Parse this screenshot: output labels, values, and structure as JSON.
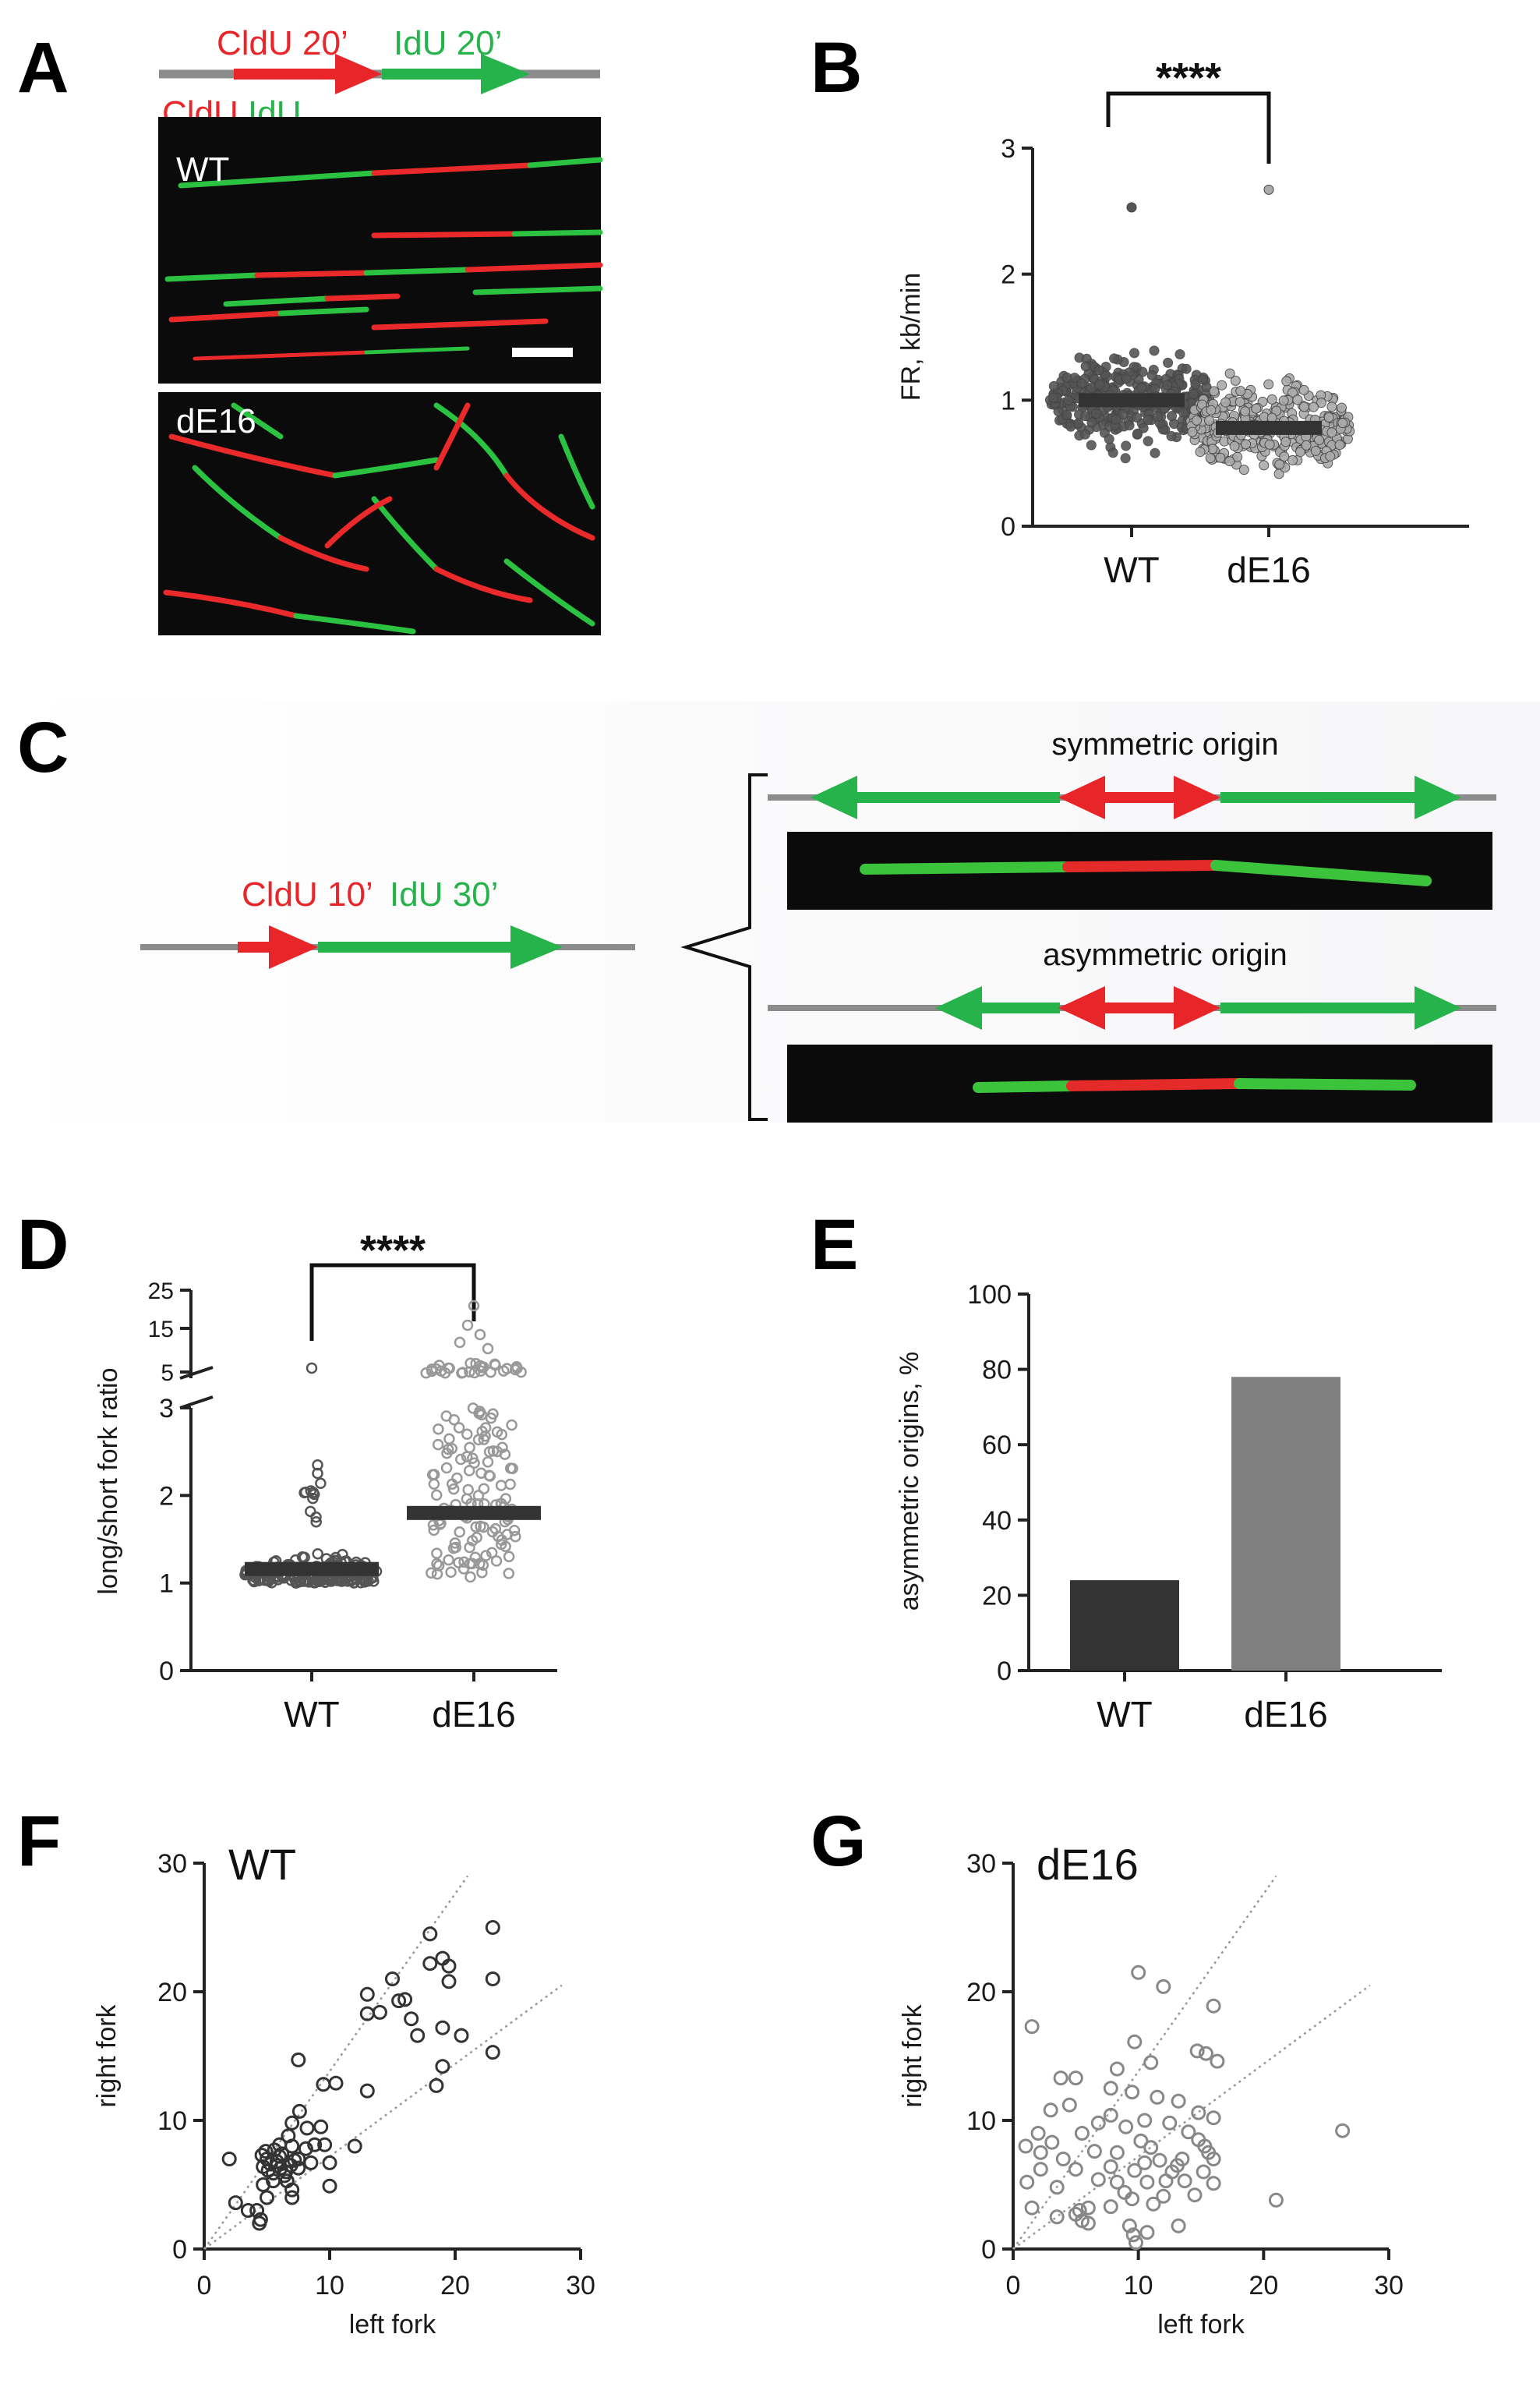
{
  "panels": {
    "A": {
      "label": "A",
      "scheme": {
        "first": "CldU 20’",
        "second": "IdU 20’"
      },
      "strip_label": "CldU IdU",
      "images": [
        "WT",
        "dE16"
      ]
    },
    "B": {
      "label": "B",
      "significance": "****"
    },
    "C": {
      "label": "C",
      "scheme": {
        "first": "CldU 10’",
        "second": "IdU 30’"
      },
      "symmetric_title": "symmetric origin",
      "asymmetric_title": "asymmetric origin"
    },
    "D": {
      "label": "D",
      "significance": "****"
    },
    "E": {
      "label": "E"
    },
    "F": {
      "label": "F",
      "inset": "WT"
    },
    "G": {
      "label": "G",
      "inset": "dE16"
    }
  },
  "colors": {
    "cldu": "#e8262a",
    "idu": "#27b34b",
    "dna": "#8c8c8c",
    "wt_bar": "#333333",
    "de16_bar": "#808080"
  },
  "chart_data": [
    {
      "id": "B",
      "type": "scatter",
      "ylabel": "FR, kb/min",
      "categories": [
        "WT",
        "dE16"
      ],
      "ylim": [
        0,
        3
      ],
      "yticks": [
        0,
        1,
        2,
        3
      ],
      "medians": [
        1.0,
        0.78
      ],
      "series": [
        {
          "color": "#555555",
          "max": 2.53,
          "min": 0.25
        },
        {
          "color": "#aaaaaa",
          "max": 2.67,
          "min": 0.17
        }
      ]
    },
    {
      "id": "D",
      "type": "scatter",
      "ylabel": "long/short fork ratio",
      "categories": [
        "WT",
        "dE16"
      ],
      "ylim": [
        0,
        3
      ],
      "yticks": [
        0,
        1,
        2,
        3
      ],
      "upper_ticks": [
        5,
        15,
        25
      ],
      "medians": [
        1.16,
        1.8
      ],
      "series": [
        {
          "color": "#555555",
          "outliers": [
            4.2
          ]
        },
        {
          "color": "#999999",
          "outliers": [
            20.5,
            12.0,
            9.5,
            6.0,
            5.0
          ]
        }
      ]
    },
    {
      "id": "E",
      "type": "bar",
      "ylabel": "asymmetric origins, %",
      "categories": [
        "WT",
        "dE16"
      ],
      "values": [
        24,
        78
      ],
      "ylim": [
        0,
        100
      ],
      "yticks": [
        0,
        20,
        40,
        60,
        80,
        100
      ]
    },
    {
      "id": "F",
      "type": "scatter",
      "xlabel": "left fork",
      "ylabel": "right fork",
      "xlim": [
        0,
        30
      ],
      "ylim": [
        0,
        30
      ],
      "xticks": [
        0,
        10,
        20,
        30
      ],
      "yticks": [
        0,
        10,
        20,
        30
      ],
      "color": "#333333",
      "points": [
        [
          14,
          18.4
        ],
        [
          18,
          24.5
        ],
        [
          19.5,
          22
        ],
        [
          23,
          25
        ],
        [
          23,
          21
        ],
        [
          23,
          15.3
        ],
        [
          18,
          22.2
        ],
        [
          19,
          22.6
        ],
        [
          19.5,
          20.8
        ],
        [
          15,
          21
        ],
        [
          15.5,
          19.3
        ],
        [
          13,
          19.8
        ],
        [
          13,
          18.3
        ],
        [
          16,
          19.4
        ],
        [
          16.5,
          17.9
        ],
        [
          17,
          16.6
        ],
        [
          19,
          17.2
        ],
        [
          20.5,
          16.6
        ],
        [
          19,
          14.2
        ],
        [
          18.5,
          12.7
        ],
        [
          9.5,
          12.8
        ],
        [
          10.5,
          12.9
        ],
        [
          9.3,
          9.5
        ],
        [
          10,
          6.7
        ],
        [
          12,
          8
        ],
        [
          10,
          4.9
        ],
        [
          13,
          12.3
        ],
        [
          7.5,
          14.7
        ],
        [
          7,
          9.8
        ],
        [
          7.6,
          10.7
        ],
        [
          8.2,
          9.4
        ],
        [
          7,
          8
        ],
        [
          6,
          7.2
        ],
        [
          7.5,
          7
        ],
        [
          5.8,
          6.5
        ],
        [
          6.2,
          7.4
        ],
        [
          5.5,
          5.9
        ],
        [
          6.5,
          6
        ],
        [
          4.7,
          6.4
        ],
        [
          5,
          7
        ],
        [
          4.6,
          7.3
        ],
        [
          7.5,
          6.3
        ],
        [
          8.5,
          6.7
        ],
        [
          9.6,
          8.1
        ],
        [
          6.6,
          5.3
        ],
        [
          7,
          4.6
        ],
        [
          7,
          4
        ],
        [
          5.5,
          5.3
        ],
        [
          4.7,
          5
        ],
        [
          5,
          4
        ],
        [
          4.2,
          3
        ],
        [
          4.5,
          2.3
        ],
        [
          4.4,
          2
        ],
        [
          3.5,
          3
        ],
        [
          2.5,
          3.6
        ],
        [
          2,
          7
        ],
        [
          5.1,
          6.1
        ],
        [
          6.9,
          6.5
        ],
        [
          8.1,
          7.8
        ],
        [
          6,
          8.1
        ],
        [
          6.7,
          8.8
        ],
        [
          4.9,
          7.6
        ],
        [
          5.8,
          6.8
        ],
        [
          6.4,
          5.7
        ],
        [
          7.2,
          6.9
        ],
        [
          6.1,
          6.3
        ],
        [
          5.3,
          6.6
        ],
        [
          8.8,
          8.1
        ],
        [
          5.6,
          7.7
        ]
      ]
    },
    {
      "id": "G",
      "type": "scatter",
      "xlabel": "left fork",
      "ylabel": "right fork",
      "xlim": [
        0,
        30
      ],
      "ylim": [
        0,
        30
      ],
      "xticks": [
        0,
        10,
        20,
        30
      ],
      "yticks": [
        0,
        10,
        20,
        30
      ],
      "color": "#888888",
      "points": [
        [
          10,
          21.5
        ],
        [
          12,
          20.4
        ],
        [
          16,
          18.9
        ],
        [
          1.5,
          17.3
        ],
        [
          9.7,
          16.1
        ],
        [
          14.7,
          15.4
        ],
        [
          15.4,
          15.2
        ],
        [
          16.3,
          14.6
        ],
        [
          11,
          14.5
        ],
        [
          8.3,
          14
        ],
        [
          5,
          13.3
        ],
        [
          3.8,
          13.3
        ],
        [
          7.8,
          12.5
        ],
        [
          9.5,
          12.2
        ],
        [
          11.5,
          11.8
        ],
        [
          13.2,
          11.5
        ],
        [
          4.5,
          11.2
        ],
        [
          3,
          10.8
        ],
        [
          7.8,
          10.4
        ],
        [
          10.5,
          10
        ],
        [
          12.5,
          9.8
        ],
        [
          14.8,
          10.6
        ],
        [
          16,
          10.2
        ],
        [
          26.3,
          9.2
        ],
        [
          9,
          9.5
        ],
        [
          5.5,
          9
        ],
        [
          2,
          9
        ],
        [
          1,
          8
        ],
        [
          2.2,
          7.5
        ],
        [
          4,
          7
        ],
        [
          6.5,
          7.6
        ],
        [
          8.3,
          7.5
        ],
        [
          11,
          7.9
        ],
        [
          14.8,
          8.5
        ],
        [
          15.3,
          8
        ],
        [
          16,
          7
        ],
        [
          13.5,
          7
        ],
        [
          10.5,
          6.7
        ],
        [
          7.8,
          6.4
        ],
        [
          9.7,
          6.1
        ],
        [
          12.7,
          6
        ],
        [
          15.2,
          6
        ],
        [
          5,
          6.2
        ],
        [
          2.2,
          6.2
        ],
        [
          1.1,
          5.2
        ],
        [
          3.5,
          4.8
        ],
        [
          6.8,
          5.4
        ],
        [
          8.3,
          5.2
        ],
        [
          10.7,
          5.2
        ],
        [
          12.2,
          5.3
        ],
        [
          13.7,
          5.3
        ],
        [
          16,
          5.1
        ],
        [
          14.5,
          4.2
        ],
        [
          12,
          4.1
        ],
        [
          9.5,
          3.9
        ],
        [
          11.2,
          3.5
        ],
        [
          7.8,
          3.3
        ],
        [
          6,
          3.2
        ],
        [
          5.3,
          3
        ],
        [
          5,
          2.7
        ],
        [
          5.5,
          2.2
        ],
        [
          6,
          2
        ],
        [
          3.5,
          2.5
        ],
        [
          9.3,
          1.8
        ],
        [
          9.6,
          1.1
        ],
        [
          9.8,
          0.5
        ],
        [
          10.7,
          1.3
        ],
        [
          13.2,
          1.8
        ],
        [
          21,
          3.8
        ],
        [
          1.5,
          3.2
        ],
        [
          8.9,
          4.4
        ],
        [
          13.1,
          6.5
        ],
        [
          11.7,
          6.9
        ],
        [
          10.2,
          8.4
        ],
        [
          14,
          9.1
        ],
        [
          15.6,
          7.5
        ],
        [
          3.1,
          8.3
        ],
        [
          6.8,
          9.8
        ]
      ]
    }
  ]
}
